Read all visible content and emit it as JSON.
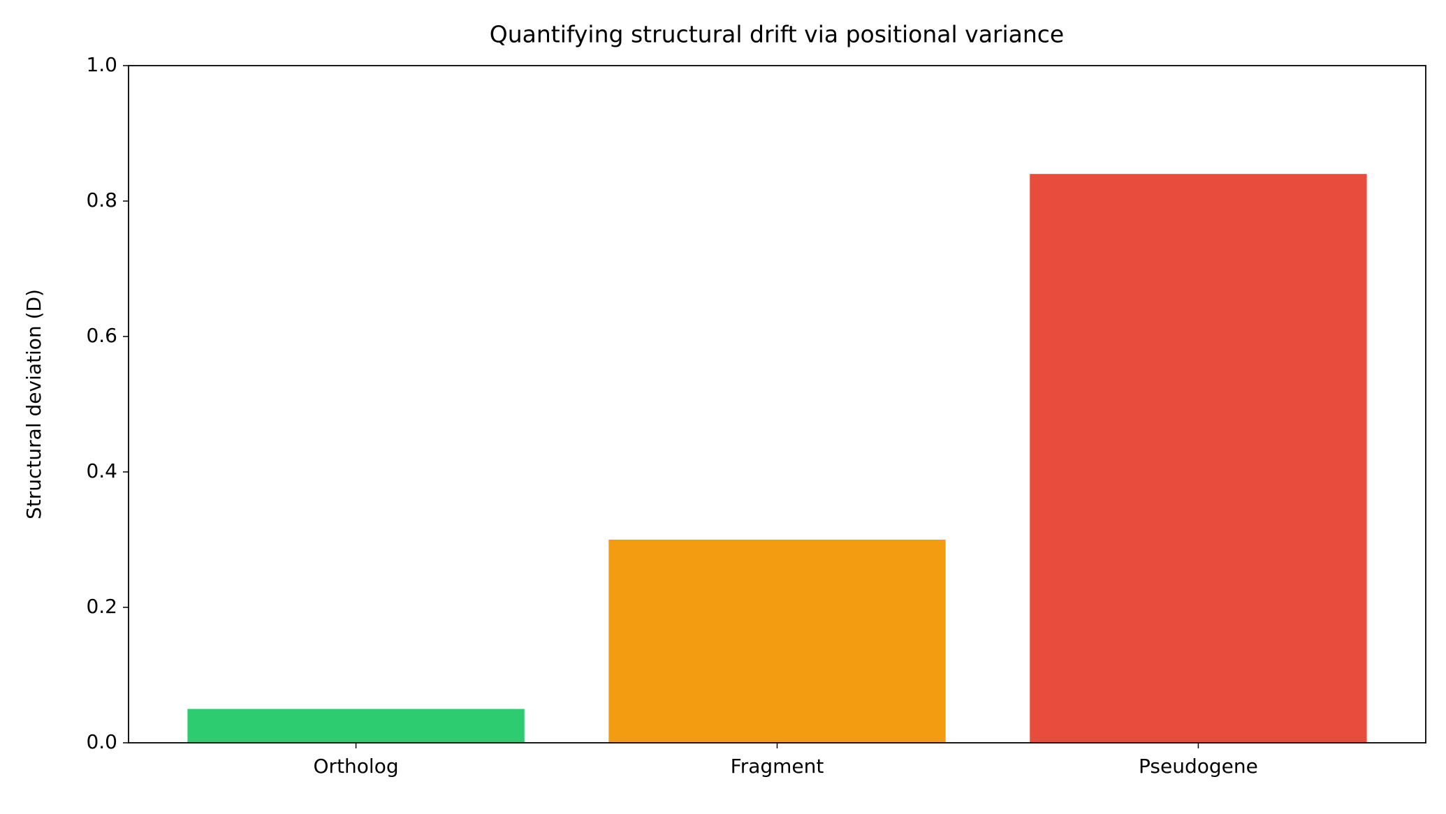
{
  "chart_data": {
    "type": "bar",
    "title": "Quantifying structural drift via positional variance",
    "ylabel": "Structural deviation (D)",
    "categories": [
      "Ortholog",
      "Fragment",
      "Pseudogene"
    ],
    "values": [
      0.05,
      0.3,
      0.84
    ],
    "colors": [
      "#2ecc71",
      "#f39c12",
      "#e74c3c"
    ],
    "ylim": [
      0,
      1
    ],
    "yticks": [
      {
        "value": 0,
        "label": "0.0"
      },
      0.2,
      0.4,
      0.6,
      0.8,
      {
        "value": 1,
        "label": "1.0"
      }
    ],
    "grid": false
  }
}
